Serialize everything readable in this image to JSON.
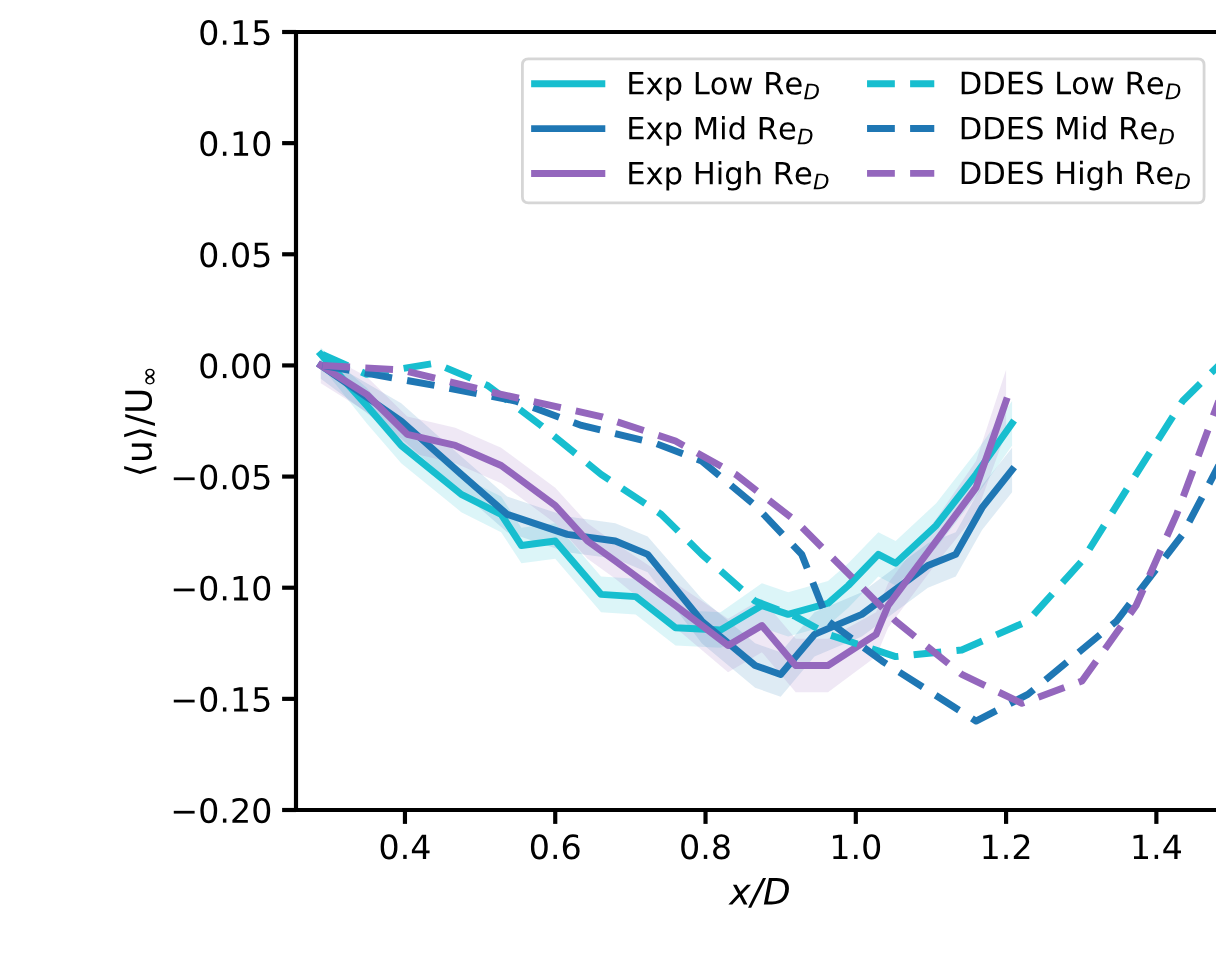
{
  "chart_data": {
    "type": "line",
    "xlabel": "x/D",
    "ylabel": "⟨u⟩/U$_{∞}$",
    "xlim": [
      0.255,
      1.49
    ],
    "ylim": [
      -0.2,
      0.15
    ],
    "xticks": [
      0.4,
      0.6,
      0.8,
      {
        "value": 1,
        "label": "1.0"
      },
      1.2,
      1.4
    ],
    "yticks": [
      {
        "value": -0.2,
        "label": "−0.20"
      },
      {
        "value": -0.15,
        "label": "−0.15"
      },
      {
        "value": -0.1,
        "label": "−0.10"
      },
      {
        "value": -0.05,
        "label": "−0.05"
      },
      {
        "value": 0,
        "label": "0.00"
      },
      {
        "value": 0.05,
        "label": "0.05"
      },
      {
        "value": 0.1,
        "label": "0.10"
      },
      {
        "value": 0.15,
        "label": "0.15"
      }
    ],
    "grid": false,
    "legend": "top right",
    "series": [
      {
        "name": "Exp Low Re$_{D}$",
        "color": "#17becf",
        "line_style": "solid",
        "x": [
          0.288,
          0.349,
          0.395,
          0.475,
          0.528,
          0.555,
          0.6,
          0.661,
          0.707,
          0.76,
          0.82,
          0.875,
          0.91,
          0.963,
          0.99,
          1.03,
          1.053,
          1.107,
          1.16,
          1.208
        ],
        "values": [
          0.005,
          -0.018,
          -0.036,
          -0.058,
          -0.067,
          -0.081,
          -0.079,
          -0.103,
          -0.104,
          -0.118,
          -0.119,
          -0.108,
          -0.112,
          -0.107,
          -0.099,
          -0.085,
          -0.089,
          -0.072,
          -0.049,
          -0.026
        ],
        "lower": [
          0.0,
          -0.026,
          -0.044,
          -0.066,
          -0.075,
          -0.089,
          -0.087,
          -0.111,
          -0.112,
          -0.126,
          -0.127,
          -0.118,
          -0.122,
          -0.117,
          -0.109,
          -0.095,
          -0.099,
          -0.082,
          -0.059,
          -0.036
        ],
        "upper": [
          0.008,
          -0.01,
          -0.028,
          -0.05,
          -0.059,
          -0.073,
          -0.071,
          -0.095,
          -0.096,
          -0.11,
          -0.111,
          -0.098,
          -0.102,
          -0.097,
          -0.089,
          -0.075,
          -0.079,
          -0.062,
          -0.039,
          -0.016
        ]
      },
      {
        "name": "Exp Mid Re$_{D}$",
        "color": "#1f77b4",
        "line_style": "solid",
        "x": [
          0.288,
          0.395,
          0.475,
          0.536,
          0.616,
          0.68,
          0.723,
          0.795,
          0.866,
          0.9,
          0.945,
          1.008,
          1.096,
          1.133,
          1.168,
          1.208
        ],
        "values": [
          0.0,
          -0.025,
          -0.049,
          -0.067,
          -0.076,
          -0.079,
          -0.085,
          -0.115,
          -0.135,
          -0.139,
          -0.121,
          -0.112,
          -0.09,
          -0.085,
          -0.064,
          -0.047
        ],
        "lower": [
          -0.006,
          -0.033,
          -0.057,
          -0.075,
          -0.084,
          -0.087,
          -0.093,
          -0.125,
          -0.145,
          -0.149,
          -0.131,
          -0.122,
          -0.1,
          -0.095,
          -0.074,
          -0.057
        ],
        "upper": [
          0.004,
          -0.017,
          -0.041,
          -0.059,
          -0.068,
          -0.071,
          -0.077,
          -0.105,
          -0.125,
          -0.129,
          -0.111,
          -0.102,
          -0.08,
          -0.075,
          -0.054,
          -0.037
        ]
      },
      {
        "name": "Exp High Re$_{D}$",
        "color": "#9467bd",
        "line_style": "solid",
        "x": [
          0.288,
          0.349,
          0.403,
          0.467,
          0.528,
          0.6,
          0.643,
          0.68,
          0.76,
          0.83,
          0.875,
          0.92,
          0.963,
          1.027,
          1.043,
          1.107,
          1.16,
          1.2
        ],
        "values": [
          0.0,
          -0.013,
          -0.031,
          -0.036,
          -0.045,
          -0.063,
          -0.079,
          -0.088,
          -0.108,
          -0.126,
          -0.117,
          -0.135,
          -0.135,
          -0.121,
          -0.108,
          -0.079,
          -0.055,
          -0.016
        ],
        "lower": [
          -0.008,
          -0.021,
          -0.039,
          -0.044,
          -0.053,
          -0.071,
          -0.087,
          -0.096,
          -0.118,
          -0.138,
          -0.129,
          -0.147,
          -0.147,
          -0.131,
          -0.118,
          -0.089,
          -0.067,
          -0.03
        ],
        "upper": [
          0.006,
          -0.005,
          -0.023,
          -0.028,
          -0.037,
          -0.055,
          -0.071,
          -0.08,
          -0.098,
          -0.114,
          -0.105,
          -0.123,
          -0.123,
          -0.111,
          -0.098,
          -0.069,
          -0.043,
          -0.002
        ]
      },
      {
        "name": "DDES Low Re$_{D}$",
        "color": "#17becf",
        "line_style": "dashed",
        "x": [
          0.29,
          0.349,
          0.44,
          0.51,
          0.581,
          0.661,
          0.741,
          0.795,
          0.866,
          0.92,
          0.963,
          1.053,
          1.141,
          1.229,
          1.301,
          1.373,
          1.435,
          1.483
        ],
        "values": [
          0.005,
          -0.004,
          0.001,
          -0.009,
          -0.027,
          -0.049,
          -0.067,
          -0.085,
          -0.106,
          -0.113,
          -0.121,
          -0.131,
          -0.128,
          -0.115,
          -0.088,
          -0.049,
          -0.016,
          0.0
        ]
      },
      {
        "name": "DDES Mid Re$_{D}$",
        "color": "#1f77b4",
        "line_style": "dashed",
        "x": [
          0.29,
          0.44,
          0.547,
          0.635,
          0.733,
          0.795,
          0.866,
          0.928,
          0.963,
          1.035,
          1.16,
          1.229,
          1.347,
          1.435,
          1.483
        ],
        "values": [
          0.0,
          -0.009,
          -0.016,
          -0.027,
          -0.035,
          -0.043,
          -0.063,
          -0.085,
          -0.115,
          -0.133,
          -0.16,
          -0.148,
          -0.115,
          -0.076,
          -0.045
        ]
      },
      {
        "name": "DDES High Re$_{D}$",
        "color": "#9467bd",
        "line_style": "dashed",
        "x": [
          0.29,
          0.395,
          0.528,
          0.661,
          0.76,
          0.84,
          0.92,
          1.0,
          1.053,
          1.141,
          1.221,
          1.301,
          1.373,
          1.427,
          1.483
        ],
        "values": [
          0.0,
          -0.002,
          -0.013,
          -0.023,
          -0.034,
          -0.049,
          -0.07,
          -0.097,
          -0.115,
          -0.139,
          -0.152,
          -0.142,
          -0.108,
          -0.067,
          -0.016
        ]
      }
    ]
  }
}
